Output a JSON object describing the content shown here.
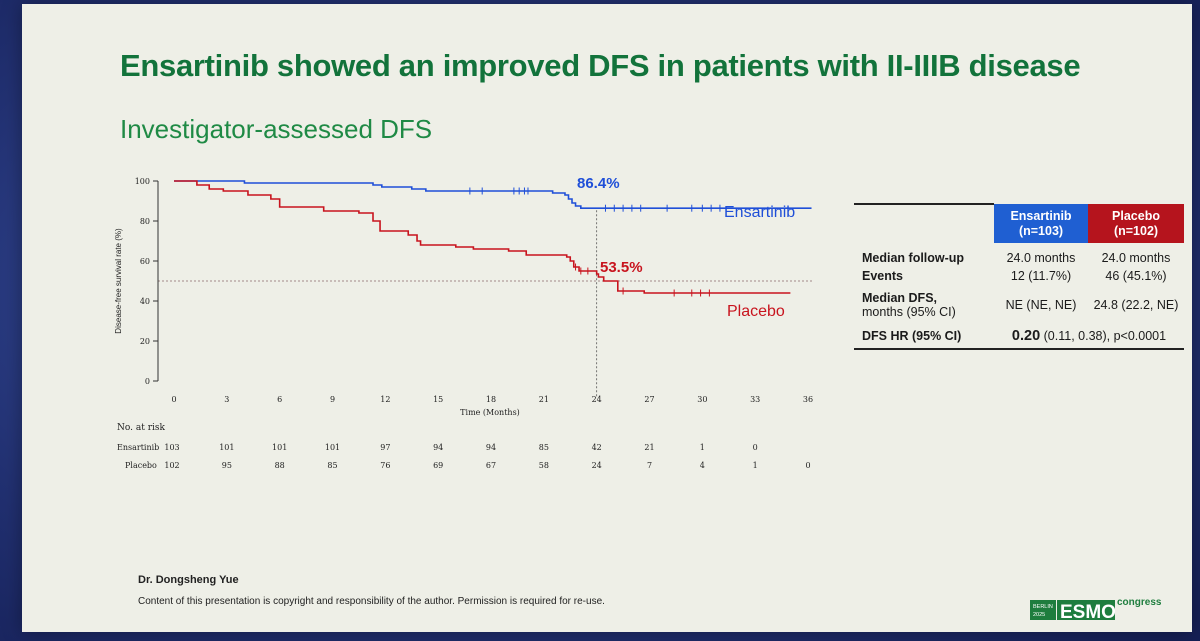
{
  "slide": {
    "title": "Ensartinib showed an improved DFS in patients with II-IIIB disease",
    "subtitle": "Investigator-assessed DFS",
    "presenter": "Dr. Dongsheng Yue",
    "copyright": "Content of this presentation is copyright and responsibility of the author. Permission is required for re-use."
  },
  "logo": {
    "year_line1": "BERLIN",
    "year_line2": "2025",
    "brand": "ESMO",
    "suffix": "congress"
  },
  "colors": {
    "title_green": "#12733b",
    "ensartinib": "#1f4fd8",
    "placebo": "#c8141e",
    "slide_bg": "#eeefe7"
  },
  "chart_data": {
    "type": "line",
    "subtype": "kaplan-meier",
    "ylabel": "Disease-free survival rate (%)",
    "xlabel": "Time (Months)",
    "xlim": [
      0,
      36
    ],
    "ylim": [
      0,
      100
    ],
    "xticks": [
      0,
      3,
      6,
      9,
      12,
      15,
      18,
      21,
      24,
      27,
      30,
      33,
      36
    ],
    "yticks": [
      0,
      20,
      40,
      60,
      80,
      100
    ],
    "reference_x": 24,
    "reference_y": 50,
    "series": [
      {
        "name": "Ensartinib",
        "color": "#1f4fd8",
        "landmark_label": "86.4%",
        "landmark_x": 24,
        "landmark_y": 86.4,
        "steps": [
          [
            0,
            100
          ],
          [
            4.0,
            99
          ],
          [
            10.5,
            99
          ],
          [
            11.3,
            98
          ],
          [
            11.8,
            97
          ],
          [
            13.5,
            96
          ],
          [
            14.3,
            95
          ],
          [
            21.5,
            94
          ],
          [
            22.2,
            93
          ],
          [
            22.4,
            91
          ],
          [
            22.6,
            89
          ],
          [
            22.8,
            87.5
          ],
          [
            23.1,
            86.4
          ],
          [
            36.2,
            86.4
          ]
        ],
        "censor_x": [
          16.8,
          17.5,
          19.3,
          19.6,
          19.9,
          20.1,
          24.5,
          25.0,
          25.5,
          26.0,
          26.5,
          28.0,
          29.4,
          30.0,
          30.5,
          31.0
        ]
      },
      {
        "name": "Placebo",
        "color": "#c8141e",
        "landmark_label": "53.5%",
        "landmark_x": 24,
        "landmark_y": 53.5,
        "steps": [
          [
            0,
            100
          ],
          [
            1.3,
            98
          ],
          [
            2.0,
            96
          ],
          [
            2.8,
            95
          ],
          [
            4.2,
            93
          ],
          [
            5.5,
            91
          ],
          [
            6.0,
            87
          ],
          [
            8.5,
            85
          ],
          [
            10.5,
            84
          ],
          [
            11.3,
            80
          ],
          [
            11.7,
            75
          ],
          [
            13.3,
            73
          ],
          [
            13.8,
            70
          ],
          [
            14.0,
            68
          ],
          [
            16.0,
            67
          ],
          [
            17.0,
            66
          ],
          [
            19.0,
            65
          ],
          [
            20.0,
            63
          ],
          [
            22.3,
            62
          ],
          [
            22.5,
            60
          ],
          [
            22.7,
            57
          ],
          [
            23.0,
            55
          ],
          [
            24.0,
            53.5
          ],
          [
            24.1,
            52
          ],
          [
            24.4,
            50
          ],
          [
            25.2,
            45
          ],
          [
            26.7,
            44
          ],
          [
            35.0,
            44
          ]
        ],
        "censor_x": [
          22.8,
          23.1,
          23.5,
          25.5,
          28.4,
          29.4,
          29.9,
          30.4
        ]
      }
    ],
    "risk_table": {
      "title": "No. at risk",
      "time_points": [
        0,
        3,
        6,
        9,
        12,
        15,
        18,
        21,
        24,
        27,
        30,
        33,
        36
      ],
      "rows": [
        {
          "name": "Ensartinib",
          "counts": [
            "103",
            "101",
            "101",
            "101",
            "97",
            "94",
            "94",
            "85",
            "42",
            "21",
            "1",
            "0",
            ""
          ]
        },
        {
          "name": "Placebo",
          "counts": [
            "102",
            "95",
            "88",
            "85",
            "76",
            "69",
            "67",
            "58",
            "24",
            "7",
            "4",
            "1",
            "0"
          ]
        }
      ]
    }
  },
  "summary_table": {
    "headers": [
      {
        "name": "Ensartinib",
        "n": "(n=103)"
      },
      {
        "name": "Placebo",
        "n": "(n=102)"
      }
    ],
    "rows": {
      "followup": {
        "label": "Median follow-up",
        "ens": "24.0 months",
        "pla": "24.0 months"
      },
      "events": {
        "label": "Events",
        "ens": "12 (11.7%)",
        "pla": "46 (45.1%)"
      },
      "dfs": {
        "label": "Median DFS,",
        "sublabel": "months (95% CI)",
        "ens": "NE (NE, NE)",
        "pla": "24.8 (22.2, NE)"
      },
      "hr": {
        "label": "DFS HR (95% CI)",
        "hr": "0.20",
        "detail": "(0.11, 0.38), p<0.0001"
      }
    }
  }
}
